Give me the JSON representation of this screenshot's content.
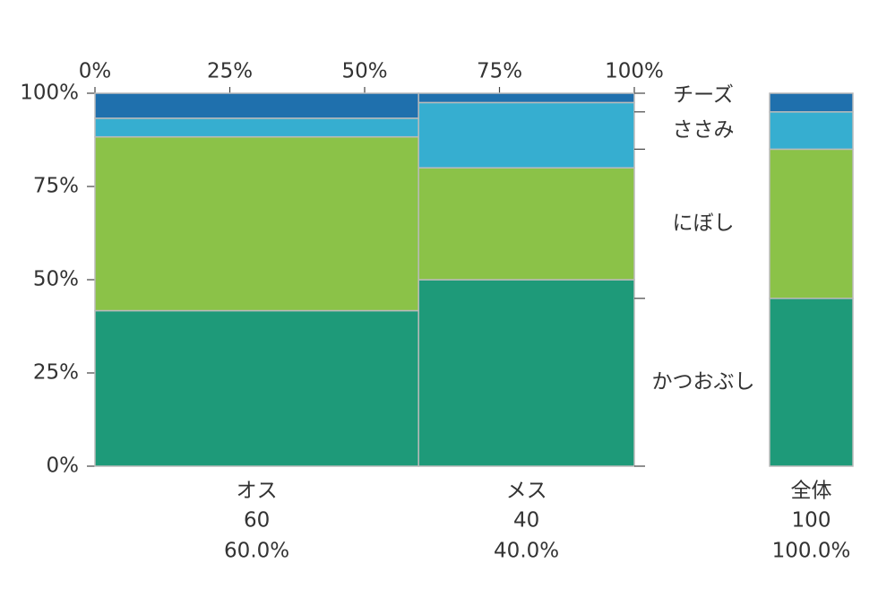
{
  "chart_data": {
    "type": "mosaic",
    "categories": [
      "オス",
      "メス",
      "全体"
    ],
    "widths": [
      60,
      40,
      100
    ],
    "width_labels": [
      "60.0%",
      "40.0%",
      "100.0%"
    ],
    "series": [
      {
        "name": "かつおぶし",
        "color": "#1e9a79",
        "values": [
          41.7,
          50,
          45
        ]
      },
      {
        "name": "にぼし",
        "color": "#8bc248",
        "values": [
          46.6,
          30,
          40
        ]
      },
      {
        "name": "ささみ",
        "color": "#36aed0",
        "values": [
          5.0,
          17.5,
          10
        ]
      },
      {
        "name": "チーズ",
        "color": "#1f70ad",
        "values": [
          6.7,
          2.5,
          5
        ]
      }
    ],
    "ylim": [
      0,
      100
    ],
    "yticks": [
      {
        "value": 0,
        "label": "0%"
      },
      {
        "value": 25,
        "label": "25%"
      },
      {
        "value": 50,
        "label": "50%"
      },
      {
        "value": 75,
        "label": "75%"
      },
      {
        "value": 100,
        "label": "100%"
      }
    ],
    "xlim": [
      0,
      100
    ],
    "xticks": [
      {
        "value": 0,
        "label": "0%"
      },
      {
        "value": 25,
        "label": "25%"
      },
      {
        "value": 50,
        "label": "50%"
      },
      {
        "value": 75,
        "label": "75%"
      },
      {
        "value": 100,
        "label": "100%"
      }
    ]
  }
}
